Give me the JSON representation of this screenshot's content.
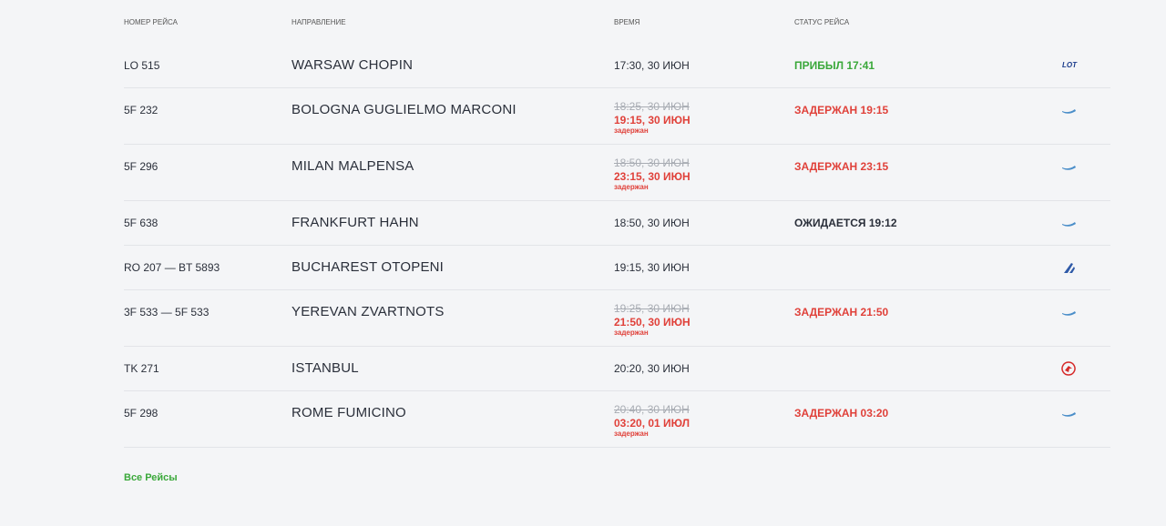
{
  "header": {
    "columns": [
      "НОМЕР РЕЙСА",
      "НАПРАВЛЕНИЕ",
      "ВРЕМЯ",
      "СТАТУС РЕЙСА"
    ]
  },
  "table": {
    "rows": [
      {
        "flight": "LO 515",
        "destination": "WARSAW CHOPIN",
        "time": "17:30, 30 ИЮН",
        "status": "ПРИБЫЛ 17:41",
        "status_color": "#3aa83a",
        "logo": "LOT",
        "logo_color": "#1b3c8c"
      },
      {
        "flight": "5F 232",
        "destination": "BOLOGNA GUGLIELMO MARCONI",
        "time": "18:25, 30 ИЮН",
        "new_time": "19:15, 30 ИЮН",
        "note": "задержан",
        "status": "ЗАДЕРЖАН 19:15",
        "status_color": "#e0413a",
        "logo_color": "#4a8ec9"
      },
      {
        "flight": "5F 296",
        "destination": "MILAN MALPENSA",
        "time": "18:50, 30 ИЮН",
        "new_time": "23:15, 30 ИЮН",
        "note": "задержан",
        "status": "ЗАДЕРЖАН 23:15",
        "status_color": "#e0413a",
        "logo_color": "#4a8ec9"
      },
      {
        "flight": "5F 638",
        "destination": "FRANKFURT HAHN",
        "time": "18:50, 30 ИЮН",
        "status": "ОЖИДАЕТСЯ 19:12",
        "status_color": "#2a2f3a",
        "logo_color": "#4a8ec9"
      },
      {
        "flight": "RO 207 — BT 5893",
        "destination": "BUCHAREST OTOPENI",
        "time": "19:15, 30 ИЮН",
        "logo_color": "#2f5aa8"
      },
      {
        "flight": "3F 533 — 5F 533",
        "destination": "YEREVAN ZVARTNOTS",
        "time": "19:25, 30 ИЮН",
        "new_time": "21:50, 30 ИЮН",
        "note": "задержан",
        "status": "ЗАДЕРЖАН 21:50",
        "status_color": "#e0413a",
        "logo_color": "#4a8ec9"
      },
      {
        "flight": "TK 271",
        "destination": "ISTANBUL",
        "time": "20:20, 30 ИЮН",
        "logo_color": "#d62a2a"
      },
      {
        "flight": "5F 298",
        "destination": "ROME FUMICINO",
        "time": "20:40, 30 ИЮН",
        "new_time": "03:20, 01 ИЮЛ",
        "note": "задержан",
        "status": "ЗАДЕРЖАН 03:20",
        "status_color": "#e0413a",
        "logo_color": "#4a8ec9"
      }
    ]
  },
  "footer": {
    "link": "Все Рейсы"
  }
}
